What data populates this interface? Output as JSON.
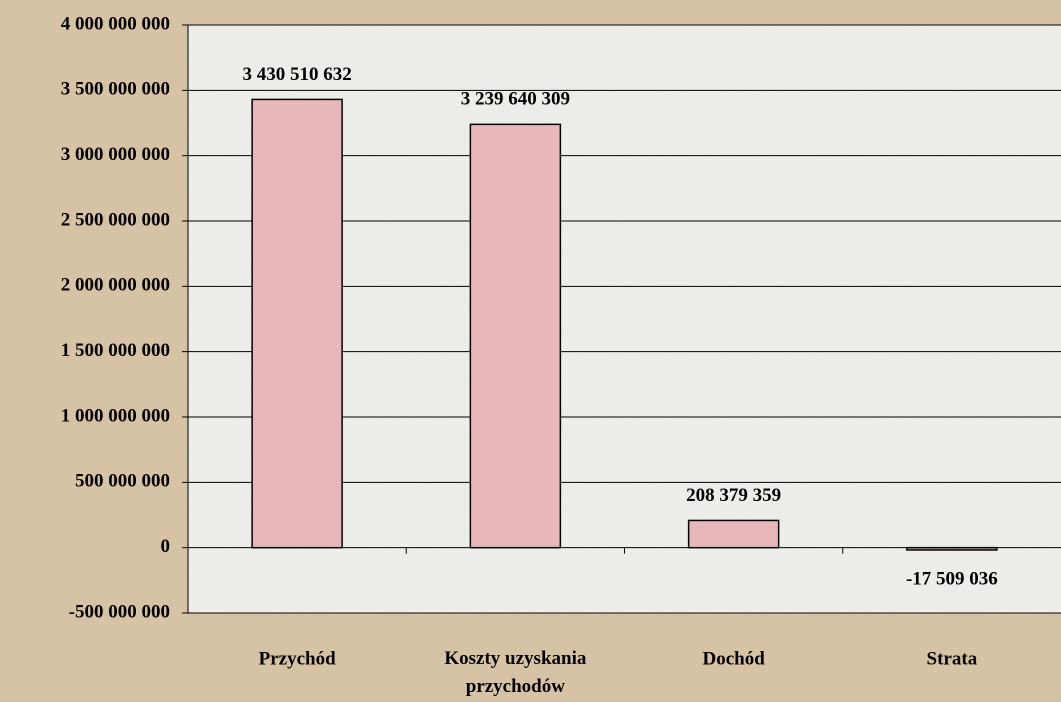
{
  "chart_data": {
    "type": "bar",
    "categories": [
      "Przychód",
      "Koszty uzyskania\nprzychodów",
      "Dochód",
      "Strata"
    ],
    "values": [
      3430510632,
      3239640309,
      208379359,
      -17509036
    ],
    "value_labels": [
      "3 430 510 632",
      "3 239 640 309",
      "208 379 359",
      "-17 509 036"
    ],
    "color": "#e8b7bb",
    "ylim": [
      -500000000,
      4000000000
    ],
    "yticks": [
      {
        "value": -500000000,
        "label": "-500 000 000"
      },
      0,
      {
        "value": 500000000,
        "label": "500 000 000"
      },
      {
        "value": 1000000000,
        "label": "1 000 000 000"
      },
      {
        "value": 1500000000,
        "label": "1 500 000 000"
      },
      {
        "value": 2000000000,
        "label": "2 000 000 000"
      },
      {
        "value": 2500000000,
        "label": "2 500 000 000"
      },
      {
        "value": 3000000000,
        "label": "3 000 000 000"
      },
      {
        "value": 3500000000,
        "label": "3 500 000 000"
      },
      {
        "value": 4000000000,
        "label": "4 000 000 000"
      }
    ],
    "grid": true
  }
}
